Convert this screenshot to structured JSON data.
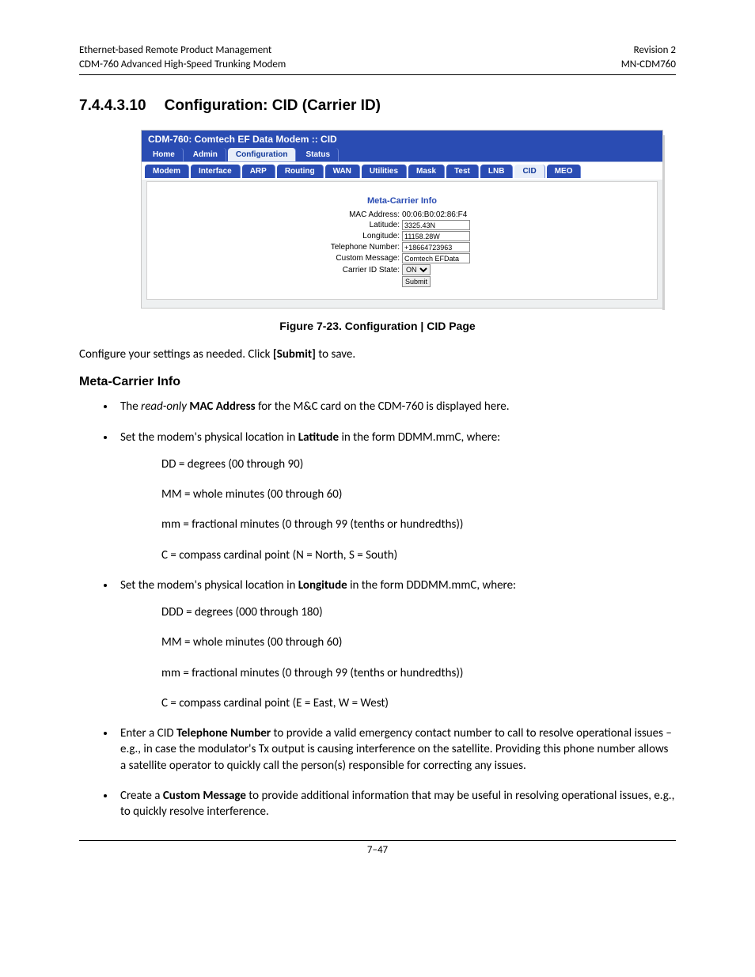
{
  "header": {
    "left_line1": "Ethernet-based Remote Product Management",
    "left_line2": "CDM-760 Advanced High-Speed Trunking Modem",
    "right_line1": "Revision 2",
    "right_line2": "MN-CDM760"
  },
  "section": {
    "number": "7.4.4.3.10",
    "title": "Configuration: CID (Carrier ID)"
  },
  "screenshot": {
    "titlebar": "CDM-760: Comtech EF Data Modem :: CID",
    "tabs_row1": [
      "Home",
      "Admin",
      "Configuration",
      "Status"
    ],
    "tabs_row1_selected_index": 2,
    "tabs_row2": [
      "Modem",
      "Interface",
      "ARP",
      "Routing",
      "WAN",
      "Utilities",
      "Mask",
      "Test",
      "LNB",
      "CID",
      "MEO"
    ],
    "tabs_row2_selected_index": 9,
    "meta_title": "Meta-Carrier Info",
    "fields": {
      "mac_label": "MAC Address:",
      "mac_value": "00:06:B0:02:86:F4",
      "lat_label": "Latitude:",
      "lat_value": "3325.43N",
      "lon_label": "Longitude:",
      "lon_value": "11158.28W",
      "tel_label": "Telephone Number:",
      "tel_value": "+18664723963",
      "msg_label": "Custom Message:",
      "msg_value": "Comtech EFData",
      "state_label": "Carrier ID State:",
      "state_value": "ON",
      "submit_label": "Submit"
    }
  },
  "figure_caption": "Figure 7-23. Configuration | CID Page",
  "intro_text_pre": "Configure your settings as needed. Click ",
  "intro_text_bold": "[Submit]",
  "intro_text_post": " to save.",
  "subheading": "Meta-Carrier Info",
  "bullet_mac_pre": "The ",
  "bullet_mac_it": "read-only",
  "bullet_mac_mid": " ",
  "bullet_mac_b": "MAC Address",
  "bullet_mac_post": " for the M&C card on the CDM-760 is displayed here.",
  "bullet_lat_pre": "Set the modem's physical location in ",
  "bullet_lat_b": "Latitude",
  "bullet_lat_post": " in the form DDMM.mmC, where:",
  "lat_lines": [
    "DD = degrees (00 through 90)",
    "MM = whole minutes (00 through 60)",
    "mm = fractional minutes (0 through 99 (tenths or hundredths))",
    "C = compass cardinal point (N = North, S = South)"
  ],
  "bullet_lon_pre": "Set the modem's physical location in ",
  "bullet_lon_b": "Longitude",
  "bullet_lon_post": " in the form DDDMM.mmC, where:",
  "lon_lines": [
    "DDD = degrees (000 through 180)",
    "MM = whole minutes (00 through 60)",
    "mm = fractional minutes (0 through 99 (tenths or hundredths))",
    "C = compass cardinal point (E = East, W = West)"
  ],
  "bullet_tel_pre": "Enter a CID ",
  "bullet_tel_b": "Telephone Number",
  "bullet_tel_post": " to provide a valid emergency contact number to call to resolve operational issues – e.g., in case the modulator's Tx output is causing interference on the satellite. Providing this phone number allows a satellite operator to quickly call the person(s) responsible for correcting any issues.",
  "bullet_msg_pre": "Create a ",
  "bullet_msg_b": "Custom Message",
  "bullet_msg_post": " to provide additional information that may be useful in resolving operational issues, e.g., to quickly resolve interference.",
  "page_number": "7–47"
}
